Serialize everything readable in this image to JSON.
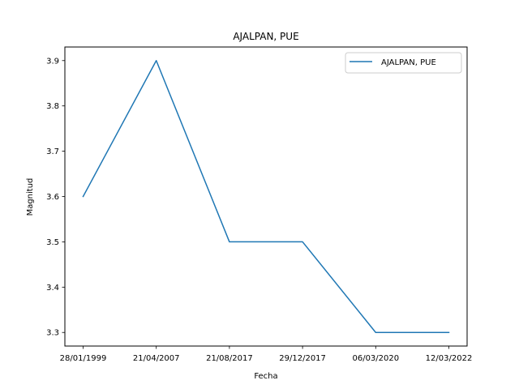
{
  "chart_data": {
    "type": "line",
    "title": "AJALPAN, PUE",
    "xlabel": "Fecha",
    "ylabel": "Magnitud",
    "categories": [
      "28/01/1999",
      "21/04/2007",
      "21/08/2017",
      "29/12/2017",
      "06/03/2020",
      "12/03/2022"
    ],
    "series": [
      {
        "name": "AJALPAN, PUE",
        "values": [
          3.6,
          3.9,
          3.5,
          3.5,
          3.3,
          3.3
        ],
        "color": "#1f77b4"
      }
    ],
    "yticks": [
      "3.3",
      "3.4",
      "3.5",
      "3.6",
      "3.7",
      "3.8",
      "3.9"
    ],
    "ylim": [
      3.27,
      3.93
    ],
    "grid": false,
    "legend_position": "top-right"
  }
}
